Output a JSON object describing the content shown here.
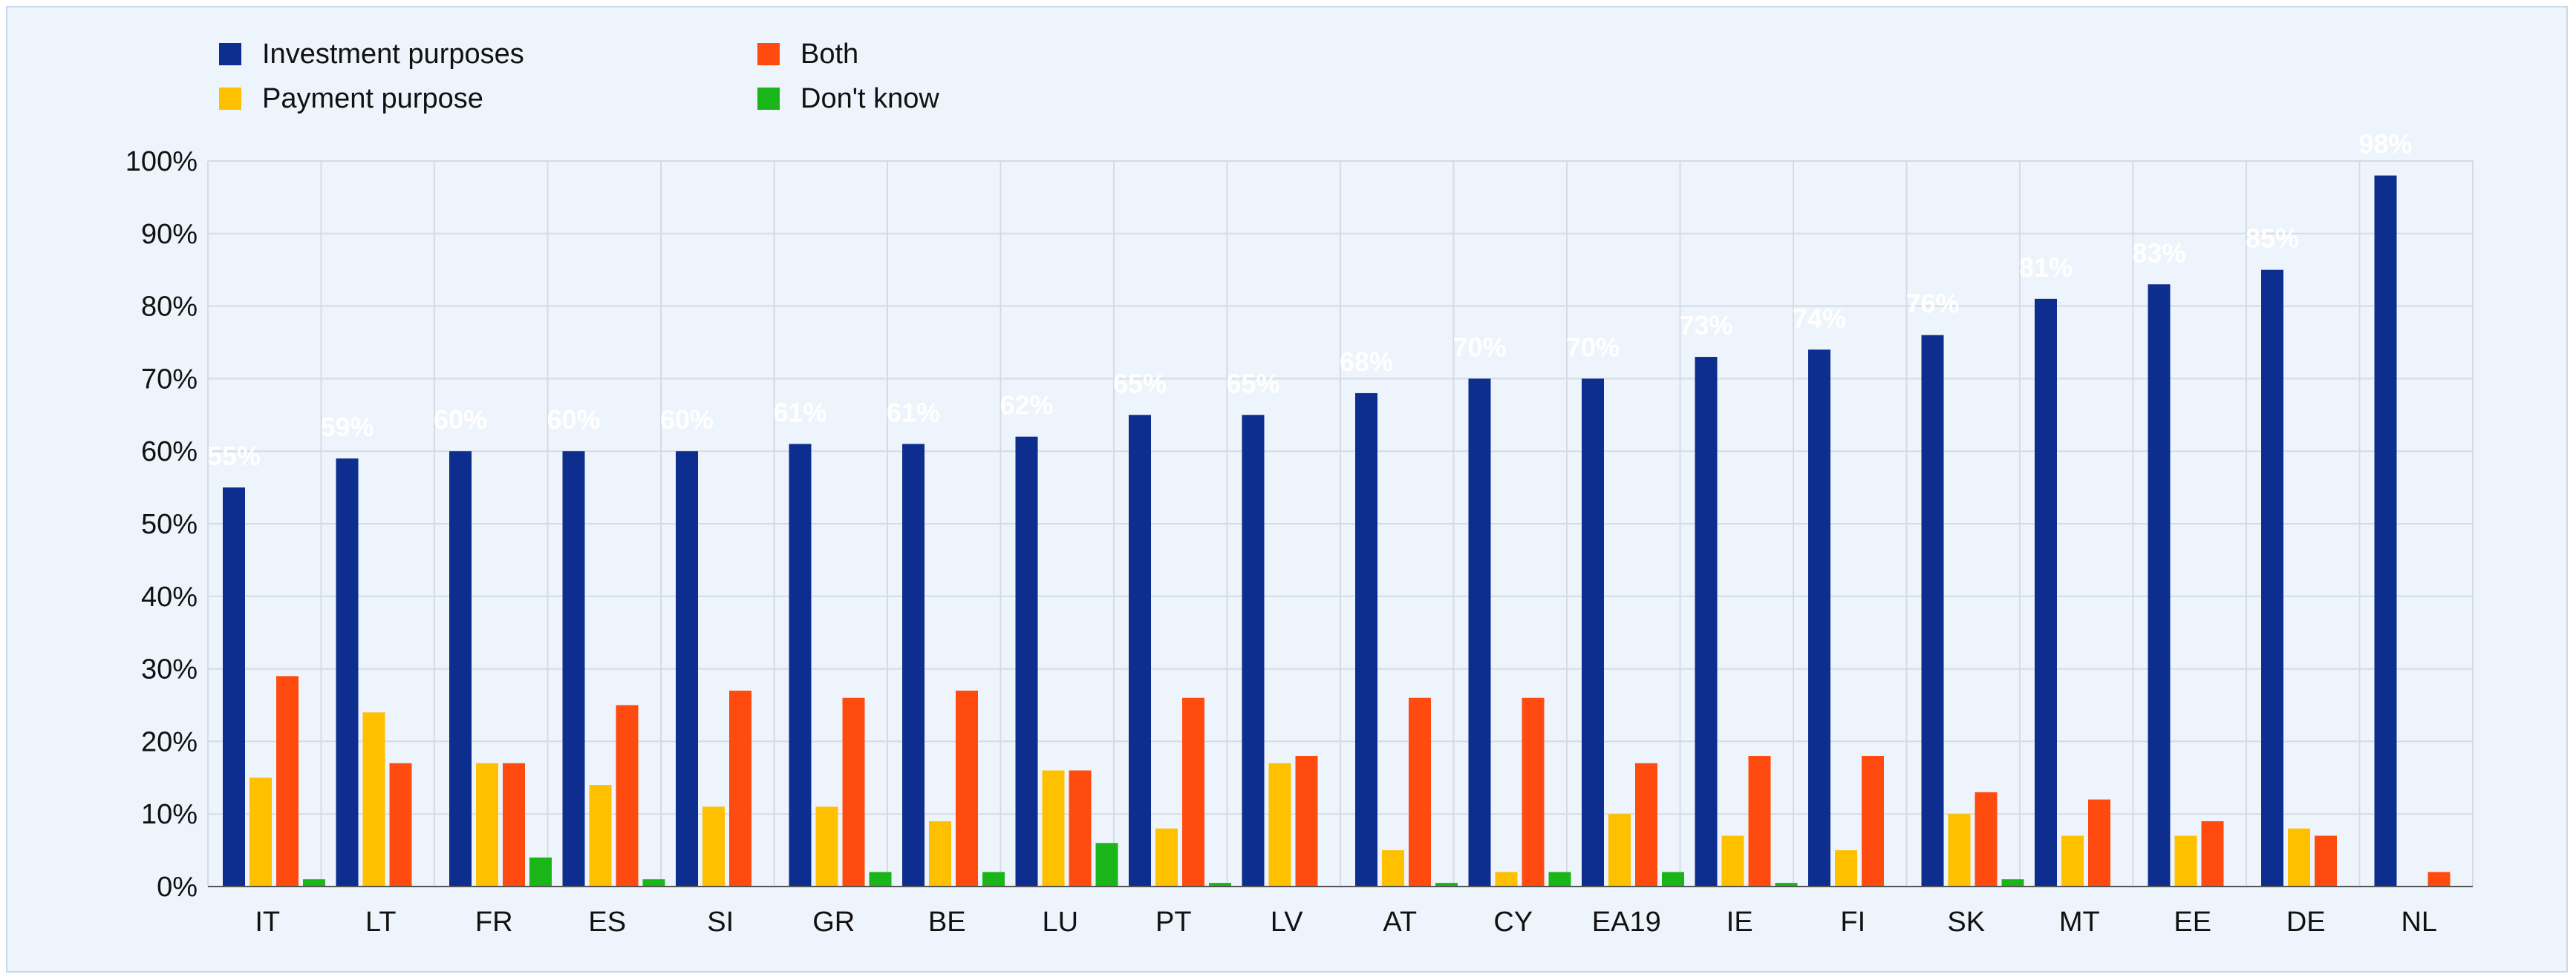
{
  "chart_data": {
    "type": "bar",
    "categories": [
      "IT",
      "LT",
      "FR",
      "ES",
      "SI",
      "GR",
      "BE",
      "LU",
      "PT",
      "LV",
      "AT",
      "CY",
      "EA19",
      "IE",
      "FI",
      "SK",
      "MT",
      "EE",
      "DE",
      "NL"
    ],
    "series": [
      {
        "name": "Investment purposes",
        "color": "#0d2d8f",
        "values": [
          55,
          59,
          60,
          60,
          60,
          61,
          61,
          62,
          65,
          65,
          68,
          70,
          70,
          73,
          74,
          76,
          81,
          83,
          85,
          98
        ]
      },
      {
        "name": "Payment purpose",
        "color": "#ffc000",
        "values": [
          15,
          24,
          17,
          14,
          11,
          11,
          9,
          16,
          8,
          17,
          5,
          2,
          10,
          7,
          5,
          10,
          7,
          7,
          8,
          0
        ]
      },
      {
        "name": "Both",
        "color": "#ff4b0f",
        "values": [
          29,
          17,
          17,
          25,
          27,
          26,
          27,
          16,
          26,
          18,
          26,
          26,
          17,
          18,
          18,
          13,
          12,
          9,
          7,
          2
        ]
      },
      {
        "name": "Don't know",
        "color": "#19b519",
        "values": [
          1,
          0,
          4,
          1,
          0,
          2,
          2,
          6,
          0.5,
          0,
          0.5,
          2,
          2,
          0.5,
          0,
          1,
          0,
          0,
          0,
          0
        ]
      }
    ],
    "data_labels": [
      "55%",
      "59%",
      "60%",
      "60%",
      "60%",
      "61%",
      "61%",
      "62%",
      "65%",
      "65%",
      "68%",
      "70%",
      "70%",
      "73%",
      "74%",
      "76%",
      "81%",
      "83%",
      "85%",
      "98%"
    ],
    "ylim": [
      0,
      100
    ],
    "yticks": [
      "0%",
      "10%",
      "20%",
      "30%",
      "40%",
      "50%",
      "60%",
      "70%",
      "80%",
      "90%",
      "100%"
    ],
    "grid": true,
    "legend_position": "top-left",
    "title": "",
    "xlabel": "",
    "ylabel": ""
  }
}
